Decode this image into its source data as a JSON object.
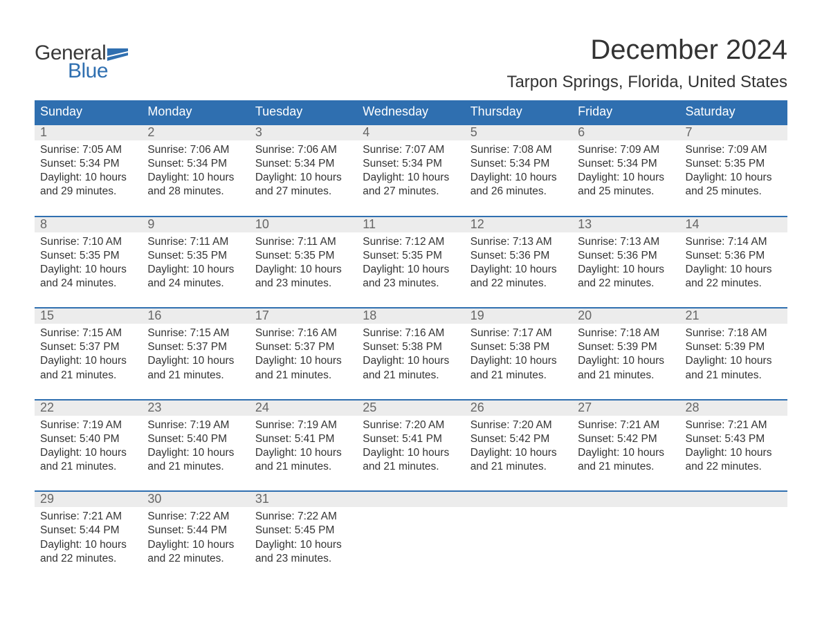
{
  "logo": {
    "line1": "General",
    "line2": "Blue",
    "flag_color": "#2f6fb0"
  },
  "title": "December 2024",
  "location": "Tarpon Springs, Florida, United States",
  "colors": {
    "header_bg": "#2f6fb0",
    "header_text": "#ffffff",
    "date_bg": "#ececec",
    "date_text": "#666666",
    "body_text": "#333333",
    "week_border": "#2f6fb0"
  },
  "day_names": [
    "Sunday",
    "Monday",
    "Tuesday",
    "Wednesday",
    "Thursday",
    "Friday",
    "Saturday"
  ],
  "weeks": [
    [
      {
        "date": "1",
        "sunrise": "Sunrise: 7:05 AM",
        "sunset": "Sunset: 5:34 PM",
        "daylight1": "Daylight: 10 hours",
        "daylight2": "and 29 minutes."
      },
      {
        "date": "2",
        "sunrise": "Sunrise: 7:06 AM",
        "sunset": "Sunset: 5:34 PM",
        "daylight1": "Daylight: 10 hours",
        "daylight2": "and 28 minutes."
      },
      {
        "date": "3",
        "sunrise": "Sunrise: 7:06 AM",
        "sunset": "Sunset: 5:34 PM",
        "daylight1": "Daylight: 10 hours",
        "daylight2": "and 27 minutes."
      },
      {
        "date": "4",
        "sunrise": "Sunrise: 7:07 AM",
        "sunset": "Sunset: 5:34 PM",
        "daylight1": "Daylight: 10 hours",
        "daylight2": "and 27 minutes."
      },
      {
        "date": "5",
        "sunrise": "Sunrise: 7:08 AM",
        "sunset": "Sunset: 5:34 PM",
        "daylight1": "Daylight: 10 hours",
        "daylight2": "and 26 minutes."
      },
      {
        "date": "6",
        "sunrise": "Sunrise: 7:09 AM",
        "sunset": "Sunset: 5:34 PM",
        "daylight1": "Daylight: 10 hours",
        "daylight2": "and 25 minutes."
      },
      {
        "date": "7",
        "sunrise": "Sunrise: 7:09 AM",
        "sunset": "Sunset: 5:35 PM",
        "daylight1": "Daylight: 10 hours",
        "daylight2": "and 25 minutes."
      }
    ],
    [
      {
        "date": "8",
        "sunrise": "Sunrise: 7:10 AM",
        "sunset": "Sunset: 5:35 PM",
        "daylight1": "Daylight: 10 hours",
        "daylight2": "and 24 minutes."
      },
      {
        "date": "9",
        "sunrise": "Sunrise: 7:11 AM",
        "sunset": "Sunset: 5:35 PM",
        "daylight1": "Daylight: 10 hours",
        "daylight2": "and 24 minutes."
      },
      {
        "date": "10",
        "sunrise": "Sunrise: 7:11 AM",
        "sunset": "Sunset: 5:35 PM",
        "daylight1": "Daylight: 10 hours",
        "daylight2": "and 23 minutes."
      },
      {
        "date": "11",
        "sunrise": "Sunrise: 7:12 AM",
        "sunset": "Sunset: 5:35 PM",
        "daylight1": "Daylight: 10 hours",
        "daylight2": "and 23 minutes."
      },
      {
        "date": "12",
        "sunrise": "Sunrise: 7:13 AM",
        "sunset": "Sunset: 5:36 PM",
        "daylight1": "Daylight: 10 hours",
        "daylight2": "and 22 minutes."
      },
      {
        "date": "13",
        "sunrise": "Sunrise: 7:13 AM",
        "sunset": "Sunset: 5:36 PM",
        "daylight1": "Daylight: 10 hours",
        "daylight2": "and 22 minutes."
      },
      {
        "date": "14",
        "sunrise": "Sunrise: 7:14 AM",
        "sunset": "Sunset: 5:36 PM",
        "daylight1": "Daylight: 10 hours",
        "daylight2": "and 22 minutes."
      }
    ],
    [
      {
        "date": "15",
        "sunrise": "Sunrise: 7:15 AM",
        "sunset": "Sunset: 5:37 PM",
        "daylight1": "Daylight: 10 hours",
        "daylight2": "and 21 minutes."
      },
      {
        "date": "16",
        "sunrise": "Sunrise: 7:15 AM",
        "sunset": "Sunset: 5:37 PM",
        "daylight1": "Daylight: 10 hours",
        "daylight2": "and 21 minutes."
      },
      {
        "date": "17",
        "sunrise": "Sunrise: 7:16 AM",
        "sunset": "Sunset: 5:37 PM",
        "daylight1": "Daylight: 10 hours",
        "daylight2": "and 21 minutes."
      },
      {
        "date": "18",
        "sunrise": "Sunrise: 7:16 AM",
        "sunset": "Sunset: 5:38 PM",
        "daylight1": "Daylight: 10 hours",
        "daylight2": "and 21 minutes."
      },
      {
        "date": "19",
        "sunrise": "Sunrise: 7:17 AM",
        "sunset": "Sunset: 5:38 PM",
        "daylight1": "Daylight: 10 hours",
        "daylight2": "and 21 minutes."
      },
      {
        "date": "20",
        "sunrise": "Sunrise: 7:18 AM",
        "sunset": "Sunset: 5:39 PM",
        "daylight1": "Daylight: 10 hours",
        "daylight2": "and 21 minutes."
      },
      {
        "date": "21",
        "sunrise": "Sunrise: 7:18 AM",
        "sunset": "Sunset: 5:39 PM",
        "daylight1": "Daylight: 10 hours",
        "daylight2": "and 21 minutes."
      }
    ],
    [
      {
        "date": "22",
        "sunrise": "Sunrise: 7:19 AM",
        "sunset": "Sunset: 5:40 PM",
        "daylight1": "Daylight: 10 hours",
        "daylight2": "and 21 minutes."
      },
      {
        "date": "23",
        "sunrise": "Sunrise: 7:19 AM",
        "sunset": "Sunset: 5:40 PM",
        "daylight1": "Daylight: 10 hours",
        "daylight2": "and 21 minutes."
      },
      {
        "date": "24",
        "sunrise": "Sunrise: 7:19 AM",
        "sunset": "Sunset: 5:41 PM",
        "daylight1": "Daylight: 10 hours",
        "daylight2": "and 21 minutes."
      },
      {
        "date": "25",
        "sunrise": "Sunrise: 7:20 AM",
        "sunset": "Sunset: 5:41 PM",
        "daylight1": "Daylight: 10 hours",
        "daylight2": "and 21 minutes."
      },
      {
        "date": "26",
        "sunrise": "Sunrise: 7:20 AM",
        "sunset": "Sunset: 5:42 PM",
        "daylight1": "Daylight: 10 hours",
        "daylight2": "and 21 minutes."
      },
      {
        "date": "27",
        "sunrise": "Sunrise: 7:21 AM",
        "sunset": "Sunset: 5:42 PM",
        "daylight1": "Daylight: 10 hours",
        "daylight2": "and 21 minutes."
      },
      {
        "date": "28",
        "sunrise": "Sunrise: 7:21 AM",
        "sunset": "Sunset: 5:43 PM",
        "daylight1": "Daylight: 10 hours",
        "daylight2": "and 22 minutes."
      }
    ],
    [
      {
        "date": "29",
        "sunrise": "Sunrise: 7:21 AM",
        "sunset": "Sunset: 5:44 PM",
        "daylight1": "Daylight: 10 hours",
        "daylight2": "and 22 minutes."
      },
      {
        "date": "30",
        "sunrise": "Sunrise: 7:22 AM",
        "sunset": "Sunset: 5:44 PM",
        "daylight1": "Daylight: 10 hours",
        "daylight2": "and 22 minutes."
      },
      {
        "date": "31",
        "sunrise": "Sunrise: 7:22 AM",
        "sunset": "Sunset: 5:45 PM",
        "daylight1": "Daylight: 10 hours",
        "daylight2": "and 23 minutes."
      },
      null,
      null,
      null,
      null
    ]
  ]
}
